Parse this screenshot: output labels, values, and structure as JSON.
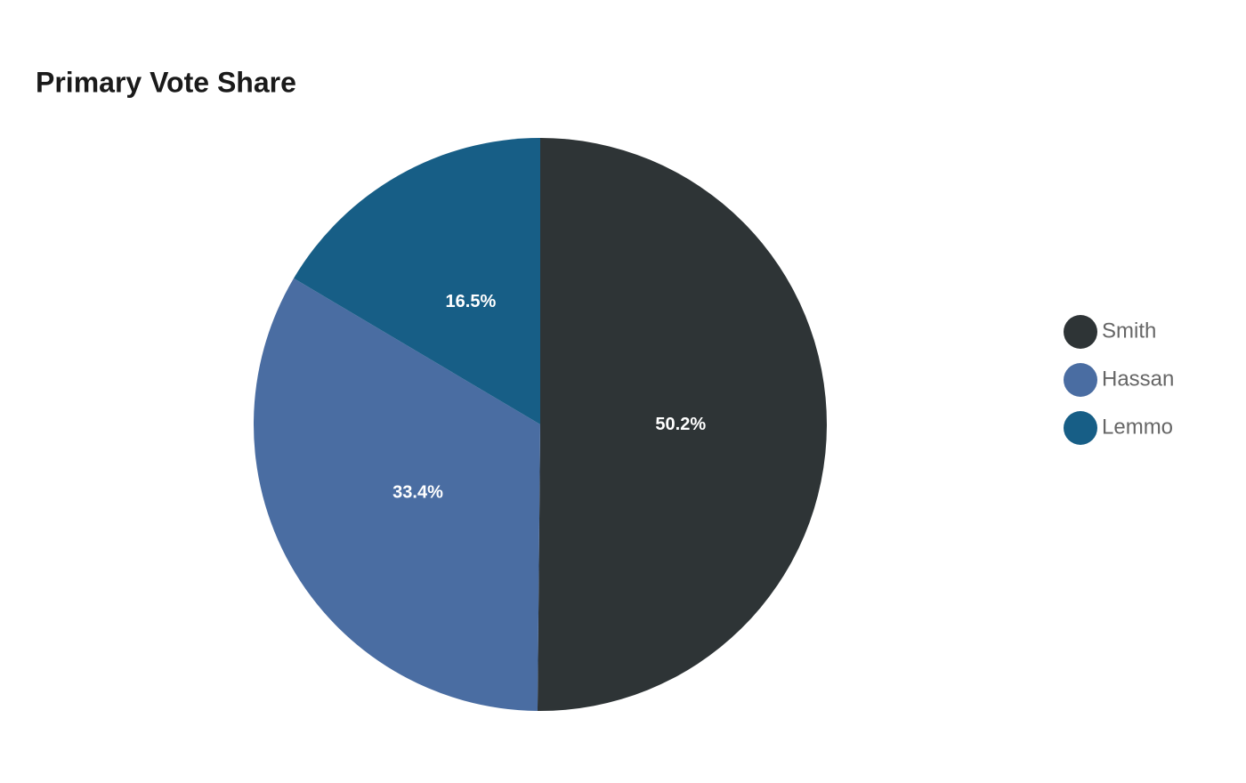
{
  "chart_data": {
    "type": "pie",
    "title": "Primary Vote Share",
    "categories": [
      "Smith",
      "Hassan",
      "Lemmo"
    ],
    "values": [
      50.2,
      33.4,
      16.5
    ],
    "value_labels": [
      "50.2%",
      "33.4%",
      "16.5%"
    ],
    "colors": [
      "#2e3436",
      "#4a6da2",
      "#175e86"
    ],
    "legend": "right"
  }
}
